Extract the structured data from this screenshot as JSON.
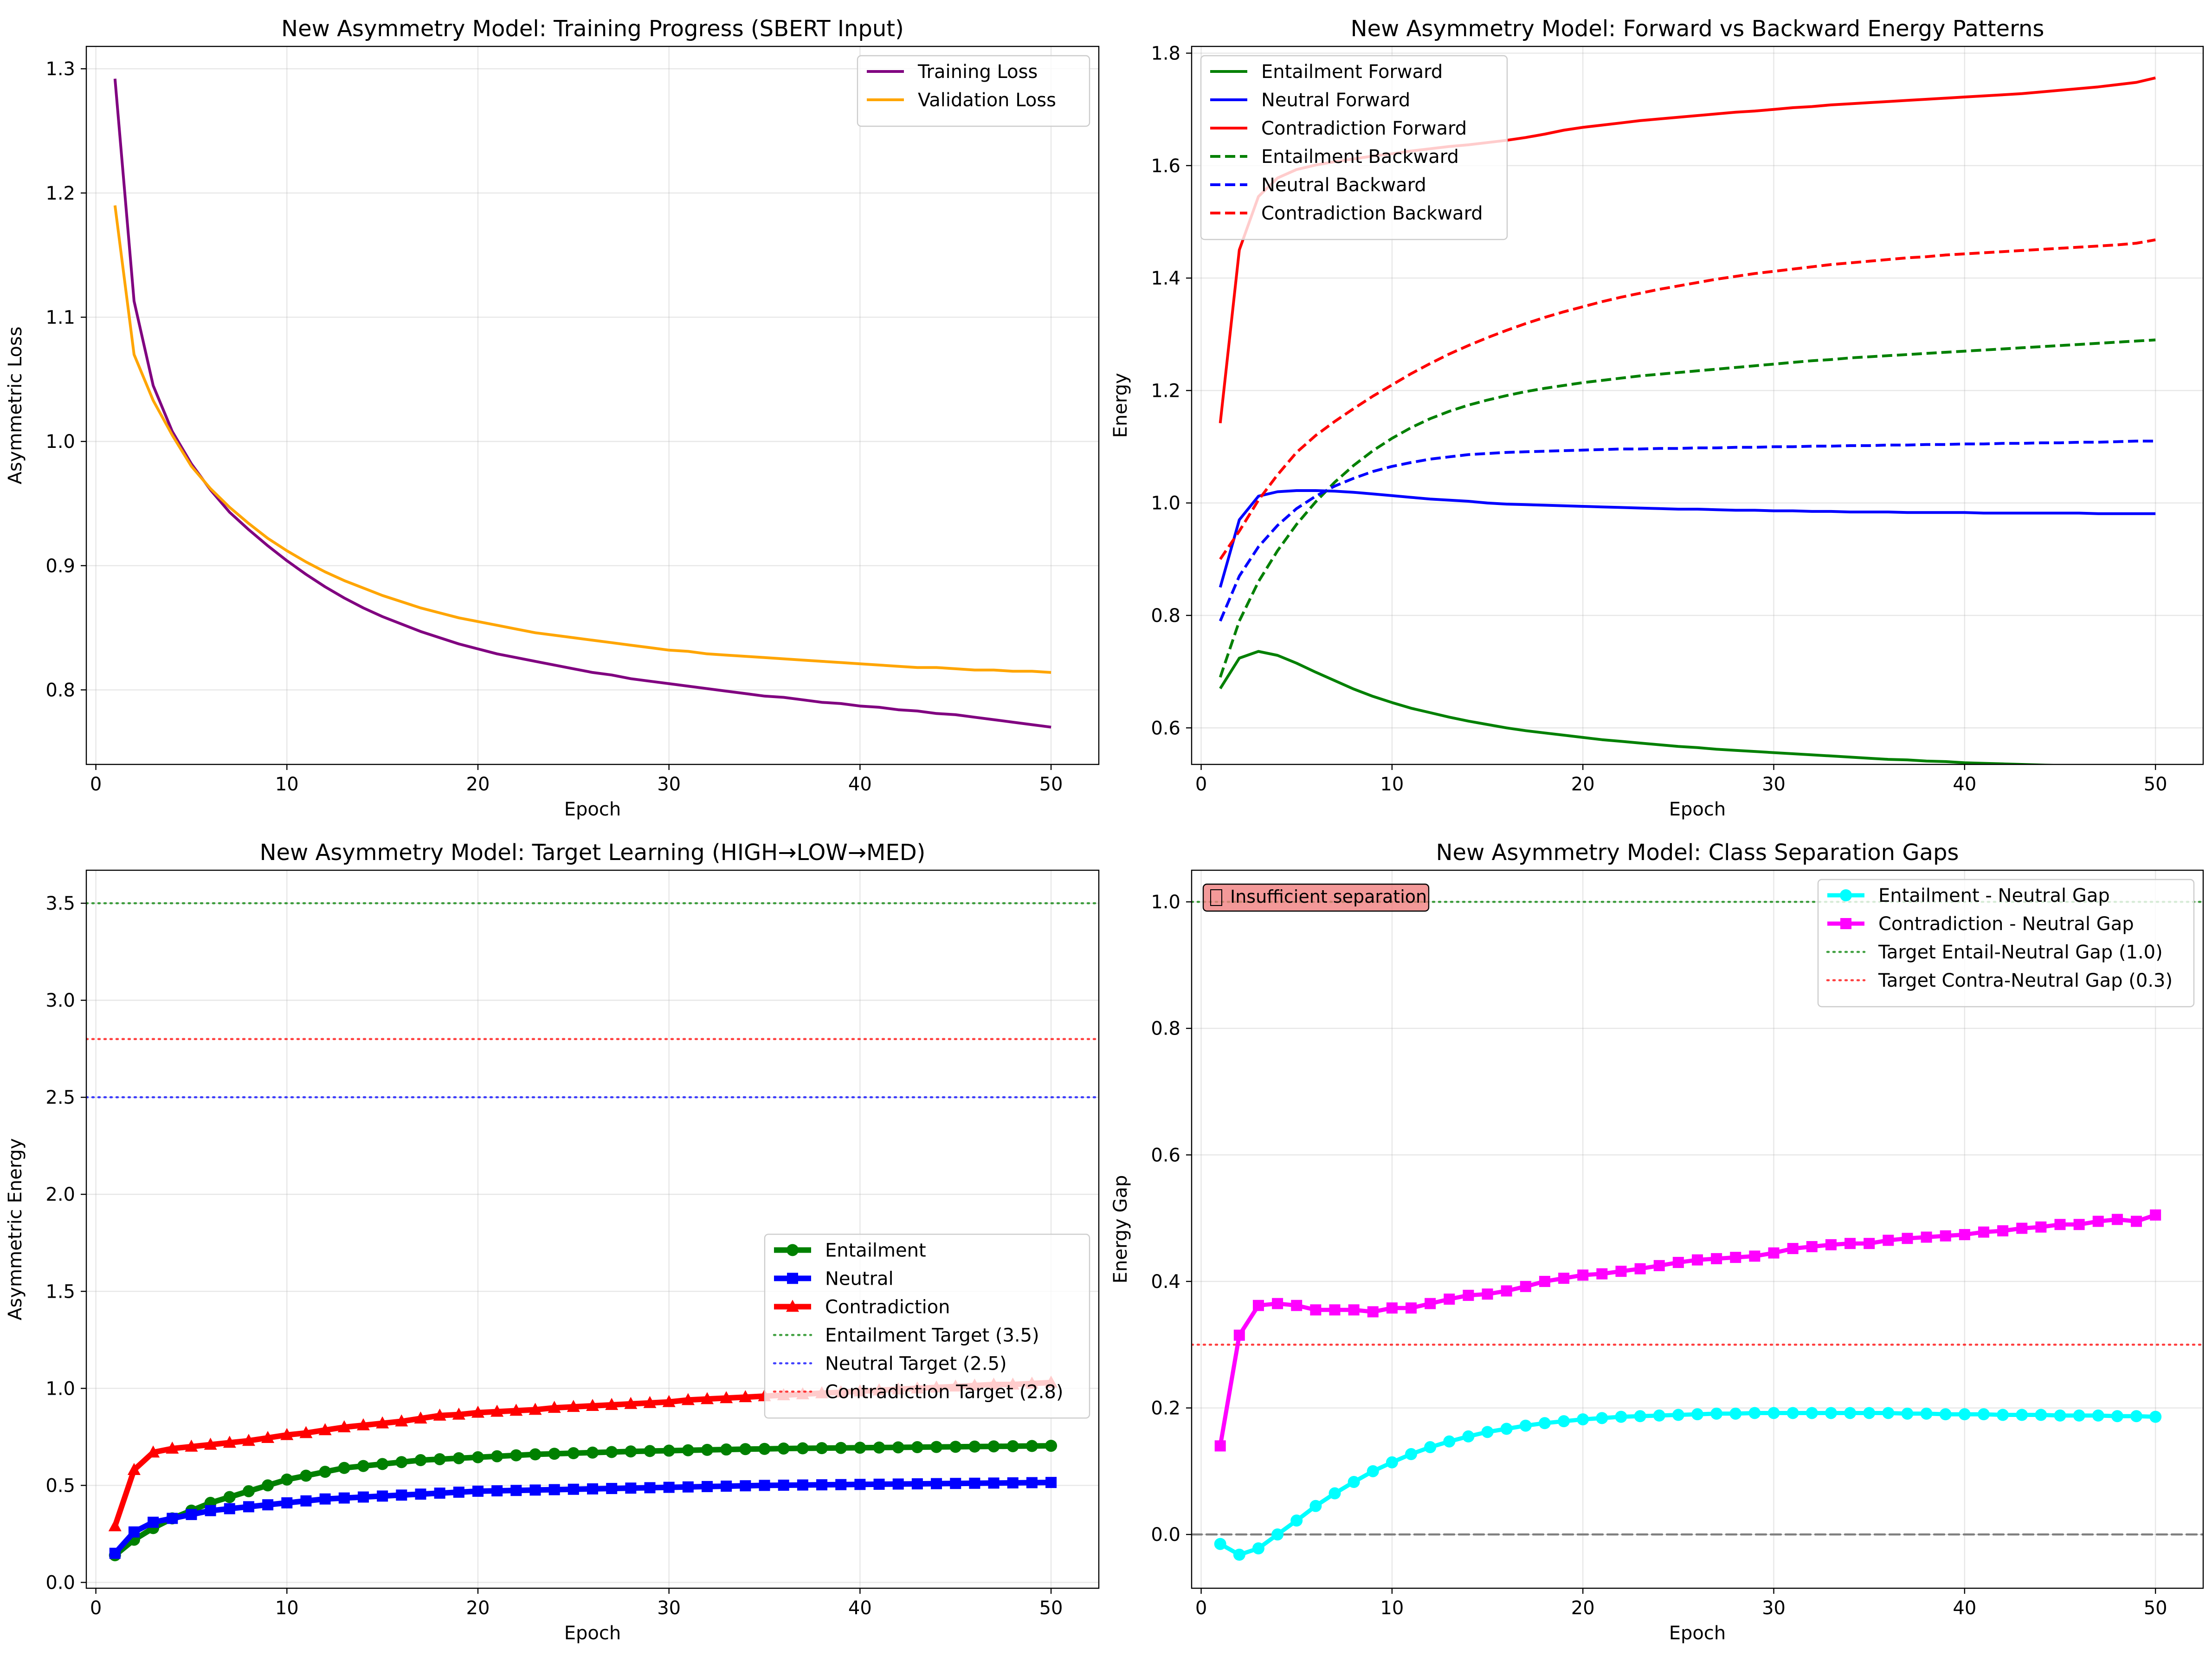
{
  "chart_data": [
    {
      "type": "line",
      "title": "New Asymmetry Model: Training Progress (SBERT Input)",
      "xlabel": "Epoch",
      "ylabel": "Asymmetric Loss",
      "xlim": [
        -0.5,
        52.5
      ],
      "ylim": [
        0.74,
        1.318
      ],
      "xticks": [
        0,
        10,
        20,
        30,
        40,
        50
      ],
      "yticks": [
        0.8,
        0.9,
        1.0,
        1.1,
        1.2,
        1.3
      ],
      "ytick_labels": [
        "0.8",
        "0.9",
        "1.0",
        "1.1",
        "1.2",
        "1.3"
      ],
      "grid": true,
      "legend_position": "top-right",
      "series": [
        {
          "name": "Training Loss",
          "color": "#800080",
          "style": "solid",
          "marker": "none",
          "width": 2,
          "values": [
            1.292,
            1.113,
            1.045,
            1.008,
            0.982,
            0.961,
            0.943,
            0.929,
            0.916,
            0.904,
            0.893,
            0.883,
            0.874,
            0.866,
            0.859,
            0.853,
            0.847,
            0.842,
            0.837,
            0.833,
            0.829,
            0.826,
            0.823,
            0.82,
            0.817,
            0.814,
            0.812,
            0.809,
            0.807,
            0.805,
            0.803,
            0.801,
            0.799,
            0.797,
            0.795,
            0.794,
            0.792,
            0.79,
            0.789,
            0.787,
            0.786,
            0.784,
            0.783,
            0.781,
            0.78,
            0.778,
            0.776,
            0.774,
            0.772,
            0.77
          ]
        },
        {
          "name": "Validation Loss",
          "color": "#ffa500",
          "style": "solid",
          "marker": "none",
          "width": 2,
          "values": [
            1.19,
            1.07,
            1.033,
            1.005,
            0.98,
            0.962,
            0.947,
            0.934,
            0.922,
            0.912,
            0.903,
            0.895,
            0.888,
            0.882,
            0.876,
            0.871,
            0.866,
            0.862,
            0.858,
            0.855,
            0.852,
            0.849,
            0.846,
            0.844,
            0.842,
            0.84,
            0.838,
            0.836,
            0.834,
            0.832,
            0.831,
            0.829,
            0.828,
            0.827,
            0.826,
            0.825,
            0.824,
            0.823,
            0.822,
            0.821,
            0.82,
            0.819,
            0.818,
            0.818,
            0.817,
            0.816,
            0.816,
            0.815,
            0.815,
            0.814
          ]
        }
      ]
    },
    {
      "type": "line",
      "title": "New Asymmetry Model: Forward vs Backward Energy Patterns",
      "xlabel": "Epoch",
      "ylabel": "Energy",
      "xlim": [
        -0.5,
        52.5
      ],
      "ylim": [
        0.535,
        1.812
      ],
      "xticks": [
        0,
        10,
        20,
        30,
        40,
        50
      ],
      "yticks": [
        0.6,
        0.8,
        1.0,
        1.2,
        1.4,
        1.6,
        1.8
      ],
      "ytick_labels": [
        "0.6",
        "0.8",
        "1.0",
        "1.2",
        "1.4",
        "1.6",
        "1.8"
      ],
      "grid": true,
      "legend_position": "top-left",
      "series": [
        {
          "name": "Entailment Forward",
          "color": "#008000",
          "style": "solid",
          "marker": "none",
          "width": 2,
          "values": [
            0.67,
            0.724,
            0.736,
            0.729,
            0.715,
            0.699,
            0.684,
            0.669,
            0.656,
            0.645,
            0.635,
            0.627,
            0.619,
            0.612,
            0.606,
            0.6,
            0.595,
            0.591,
            0.587,
            0.583,
            0.579,
            0.576,
            0.573,
            0.57,
            0.567,
            0.565,
            0.562,
            0.56,
            0.558,
            0.556,
            0.554,
            0.552,
            0.55,
            0.548,
            0.546,
            0.544,
            0.543,
            0.541,
            0.54,
            0.538,
            0.537,
            0.536,
            0.535,
            0.534,
            0.533,
            0.532,
            0.532,
            0.531,
            0.53,
            0.53
          ]
        },
        {
          "name": "Neutral Forward",
          "color": "#0000ff",
          "style": "solid",
          "marker": "none",
          "width": 2,
          "values": [
            0.85,
            0.97,
            1.012,
            1.02,
            1.022,
            1.022,
            1.021,
            1.019,
            1.016,
            1.013,
            1.01,
            1.007,
            1.005,
            1.003,
            1.0,
            0.998,
            0.997,
            0.996,
            0.995,
            0.994,
            0.993,
            0.992,
            0.991,
            0.99,
            0.989,
            0.989,
            0.988,
            0.987,
            0.987,
            0.986,
            0.986,
            0.985,
            0.985,
            0.984,
            0.984,
            0.984,
            0.983,
            0.983,
            0.983,
            0.983,
            0.982,
            0.982,
            0.982,
            0.982,
            0.982,
            0.982,
            0.981,
            0.981,
            0.981,
            0.981
          ]
        },
        {
          "name": "Contradiction Forward",
          "color": "#ff0000",
          "style": "solid",
          "marker": "none",
          "width": 2,
          "values": [
            1.142,
            1.45,
            1.545,
            1.578,
            1.593,
            1.601,
            1.607,
            1.612,
            1.617,
            1.621,
            1.626,
            1.63,
            1.634,
            1.637,
            1.641,
            1.645,
            1.65,
            1.656,
            1.663,
            1.668,
            1.672,
            1.676,
            1.68,
            1.683,
            1.686,
            1.689,
            1.692,
            1.695,
            1.697,
            1.7,
            1.703,
            1.705,
            1.708,
            1.71,
            1.712,
            1.714,
            1.716,
            1.718,
            1.72,
            1.722,
            1.724,
            1.726,
            1.728,
            1.731,
            1.734,
            1.737,
            1.74,
            1.744,
            1.748,
            1.756
          ]
        },
        {
          "name": "Entailment Backward",
          "color": "#008000",
          "style": "dashed",
          "marker": "none",
          "width": 2,
          "values": [
            0.69,
            0.79,
            0.86,
            0.915,
            0.962,
            1.002,
            1.037,
            1.067,
            1.093,
            1.115,
            1.134,
            1.15,
            1.163,
            1.174,
            1.183,
            1.191,
            1.198,
            1.204,
            1.209,
            1.214,
            1.218,
            1.222,
            1.226,
            1.229,
            1.232,
            1.235,
            1.238,
            1.241,
            1.244,
            1.247,
            1.25,
            1.253,
            1.255,
            1.258,
            1.26,
            1.262,
            1.264,
            1.266,
            1.268,
            1.27,
            1.272,
            1.274,
            1.276,
            1.278,
            1.28,
            1.282,
            1.284,
            1.286,
            1.288,
            1.29
          ]
        },
        {
          "name": "Neutral Backward",
          "color": "#0000ff",
          "style": "dashed",
          "marker": "none",
          "width": 2,
          "values": [
            0.79,
            0.87,
            0.922,
            0.96,
            0.99,
            1.012,
            1.03,
            1.044,
            1.056,
            1.065,
            1.072,
            1.078,
            1.082,
            1.086,
            1.088,
            1.09,
            1.091,
            1.092,
            1.093,
            1.094,
            1.095,
            1.096,
            1.096,
            1.097,
            1.097,
            1.098,
            1.098,
            1.099,
            1.099,
            1.1,
            1.1,
            1.101,
            1.101,
            1.102,
            1.102,
            1.103,
            1.103,
            1.104,
            1.104,
            1.105,
            1.105,
            1.106,
            1.106,
            1.107,
            1.107,
            1.108,
            1.108,
            1.109,
            1.11,
            1.11
          ]
        },
        {
          "name": "Contradiction Backward",
          "color": "#ff0000",
          "style": "dashed",
          "marker": "none",
          "width": 2,
          "values": [
            0.9,
            0.95,
            1.005,
            1.05,
            1.09,
            1.12,
            1.145,
            1.168,
            1.19,
            1.21,
            1.23,
            1.248,
            1.265,
            1.28,
            1.294,
            1.307,
            1.319,
            1.33,
            1.34,
            1.349,
            1.358,
            1.366,
            1.373,
            1.38,
            1.386,
            1.392,
            1.398,
            1.403,
            1.408,
            1.412,
            1.416,
            1.42,
            1.424,
            1.427,
            1.43,
            1.433,
            1.436,
            1.438,
            1.441,
            1.443,
            1.445,
            1.447,
            1.449,
            1.451,
            1.453,
            1.455,
            1.457,
            1.459,
            1.462,
            1.468
          ]
        }
      ]
    },
    {
      "type": "line",
      "title": "New Asymmetry Model: Target Learning (HIGH→LOW→MED)",
      "xlabel": "Epoch",
      "ylabel": "Asymmetric Energy",
      "xlim": [
        -0.5,
        52.5
      ],
      "ylim": [
        -0.03,
        3.67
      ],
      "xticks": [
        0,
        10,
        20,
        30,
        40,
        50
      ],
      "yticks": [
        0.0,
        0.5,
        1.0,
        1.5,
        2.0,
        2.5,
        3.0,
        3.5
      ],
      "ytick_labels": [
        "0.0",
        "0.5",
        "1.0",
        "1.5",
        "2.0",
        "2.5",
        "3.0",
        "3.5"
      ],
      "grid": true,
      "legend_position": "center-right",
      "series": [
        {
          "name": "Entailment",
          "color": "#008000",
          "style": "solid",
          "marker": "circle",
          "width": 4,
          "values": [
            0.14,
            0.22,
            0.28,
            0.33,
            0.37,
            0.41,
            0.44,
            0.47,
            0.5,
            0.53,
            0.55,
            0.57,
            0.59,
            0.6,
            0.61,
            0.62,
            0.63,
            0.635,
            0.64,
            0.645,
            0.65,
            0.655,
            0.66,
            0.663,
            0.666,
            0.669,
            0.672,
            0.675,
            0.677,
            0.679,
            0.681,
            0.683,
            0.685,
            0.687,
            0.688,
            0.69,
            0.691,
            0.692,
            0.693,
            0.694,
            0.695,
            0.696,
            0.697,
            0.698,
            0.699,
            0.7,
            0.701,
            0.702,
            0.703,
            0.704
          ]
        },
        {
          "name": "Neutral",
          "color": "#0000ff",
          "style": "solid",
          "marker": "square",
          "width": 4,
          "values": [
            0.15,
            0.26,
            0.31,
            0.33,
            0.35,
            0.37,
            0.38,
            0.39,
            0.4,
            0.41,
            0.42,
            0.43,
            0.435,
            0.44,
            0.445,
            0.45,
            0.455,
            0.46,
            0.465,
            0.47,
            0.472,
            0.474,
            0.476,
            0.478,
            0.48,
            0.482,
            0.484,
            0.486,
            0.488,
            0.49,
            0.492,
            0.494,
            0.496,
            0.498,
            0.5,
            0.501,
            0.502,
            0.503,
            0.504,
            0.505,
            0.506,
            0.507,
            0.508,
            0.509,
            0.51,
            0.511,
            0.512,
            0.513,
            0.514,
            0.515
          ]
        },
        {
          "name": "Contradiction",
          "color": "#ff0000",
          "style": "solid",
          "marker": "triangle",
          "width": 4,
          "values": [
            0.29,
            0.58,
            0.67,
            0.69,
            0.7,
            0.71,
            0.72,
            0.73,
            0.745,
            0.76,
            0.77,
            0.785,
            0.8,
            0.81,
            0.82,
            0.83,
            0.845,
            0.86,
            0.865,
            0.875,
            0.88,
            0.885,
            0.89,
            0.9,
            0.905,
            0.91,
            0.915,
            0.92,
            0.925,
            0.93,
            0.94,
            0.945,
            0.95,
            0.955,
            0.96,
            0.965,
            0.97,
            0.975,
            0.98,
            0.985,
            0.99,
            0.995,
            1.0,
            1.005,
            1.01,
            1.015,
            1.02,
            1.02,
            1.025,
            1.03
          ]
        }
      ],
      "reference_lines": [
        {
          "name": "Entailment Target (3.5)",
          "value": 3.5,
          "color": "#008000"
        },
        {
          "name": "Neutral Target (2.5)",
          "value": 2.5,
          "color": "#0000ff"
        },
        {
          "name": "Contradiction Target (2.8)",
          "value": 2.8,
          "color": "#ff0000"
        }
      ]
    },
    {
      "type": "line",
      "title": "New Asymmetry Model: Class Separation Gaps",
      "xlabel": "Epoch",
      "ylabel": "Energy Gap",
      "xlim": [
        -0.5,
        52.5
      ],
      "ylim": [
        -0.085,
        1.05
      ],
      "xticks": [
        0,
        10,
        20,
        30,
        40,
        50
      ],
      "yticks": [
        0.0,
        0.2,
        0.4,
        0.6,
        0.8,
        1.0
      ],
      "ytick_labels": [
        "0.0",
        "0.2",
        "0.4",
        "0.6",
        "0.8",
        "1.0"
      ],
      "grid": true,
      "legend_position": "top-right",
      "series": [
        {
          "name": "Entailment - Neutral Gap",
          "color": "#00ffff",
          "style": "solid",
          "marker": "circle",
          "width": 3,
          "values": [
            -0.015,
            -0.032,
            -0.022,
            0.0,
            0.022,
            0.045,
            0.065,
            0.083,
            0.1,
            0.114,
            0.127,
            0.138,
            0.147,
            0.155,
            0.162,
            0.167,
            0.172,
            0.176,
            0.179,
            0.182,
            0.184,
            0.186,
            0.187,
            0.188,
            0.189,
            0.19,
            0.191,
            0.191,
            0.192,
            0.192,
            0.192,
            0.192,
            0.192,
            0.192,
            0.192,
            0.192,
            0.191,
            0.191,
            0.19,
            0.19,
            0.19,
            0.189,
            0.189,
            0.189,
            0.188,
            0.188,
            0.188,
            0.187,
            0.187,
            0.186
          ]
        },
        {
          "name": "Contradiction - Neutral Gap",
          "color": "#ff00ff",
          "style": "solid",
          "marker": "square",
          "width": 3,
          "values": [
            0.14,
            0.315,
            0.362,
            0.365,
            0.362,
            0.355,
            0.355,
            0.355,
            0.352,
            0.358,
            0.358,
            0.365,
            0.372,
            0.378,
            0.38,
            0.385,
            0.392,
            0.4,
            0.405,
            0.41,
            0.412,
            0.416,
            0.42,
            0.425,
            0.43,
            0.434,
            0.436,
            0.438,
            0.44,
            0.445,
            0.452,
            0.455,
            0.458,
            0.46,
            0.46,
            0.465,
            0.468,
            0.47,
            0.472,
            0.474,
            0.478,
            0.48,
            0.484,
            0.486,
            0.49,
            0.49,
            0.495,
            0.498,
            0.495,
            0.505
          ]
        }
      ],
      "reference_lines": [
        {
          "name": "Target Entail-Neutral Gap (1.0)",
          "value": 1.0,
          "color": "#008000"
        },
        {
          "name": "Target Contra-Neutral Gap (0.3)",
          "value": 0.3,
          "color": "#ff0000"
        },
        {
          "name": "",
          "value": 0.0,
          "color": "#808080",
          "dashed": true
        }
      ],
      "annotation": {
        "text": "Insufficient separation",
        "icon": "warning-icon",
        "color": "#f08080"
      }
    }
  ]
}
